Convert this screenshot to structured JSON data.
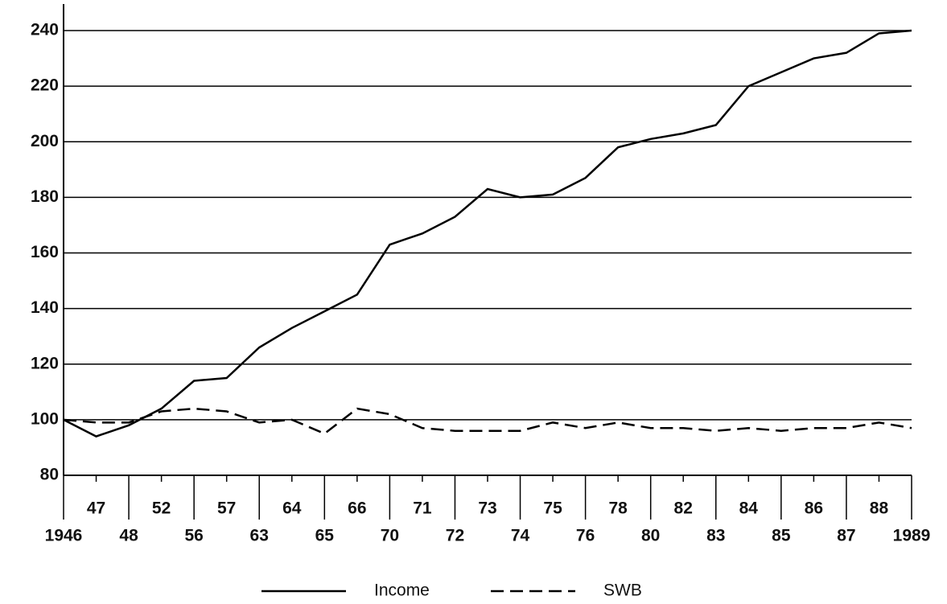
{
  "chart_data": {
    "type": "line",
    "categories": [
      "1946",
      "47",
      "48",
      "52",
      "56",
      "57",
      "63",
      "64",
      "65",
      "66",
      "70",
      "71",
      "72",
      "73",
      "74",
      "75",
      "76",
      "78",
      "80",
      "82",
      "83",
      "84",
      "85",
      "86",
      "87",
      "88",
      "1989"
    ],
    "series": [
      {
        "name": "Income",
        "color": "#000000",
        "line_style": "solid",
        "values": [
          100,
          94,
          98,
          104,
          114,
          115,
          126,
          133,
          139,
          145,
          163,
          167,
          173,
          183,
          180,
          181,
          187,
          198,
          201,
          203,
          206,
          220,
          225,
          230,
          232,
          239,
          240
        ]
      },
      {
        "name": "SWB",
        "color": "#000000",
        "line_style": "dashed",
        "values": [
          100,
          99,
          99,
          103,
          104,
          103,
          99,
          100,
          95,
          104,
          102,
          97,
          96,
          96,
          96,
          99,
          97,
          99,
          97,
          97,
          96,
          97,
          96,
          97,
          97,
          99,
          97
        ]
      }
    ],
    "ylim": [
      80,
      240
    ],
    "yticks": [
      80,
      100,
      120,
      140,
      160,
      180,
      200,
      220,
      240
    ],
    "grid": true,
    "legend": "bottom"
  }
}
